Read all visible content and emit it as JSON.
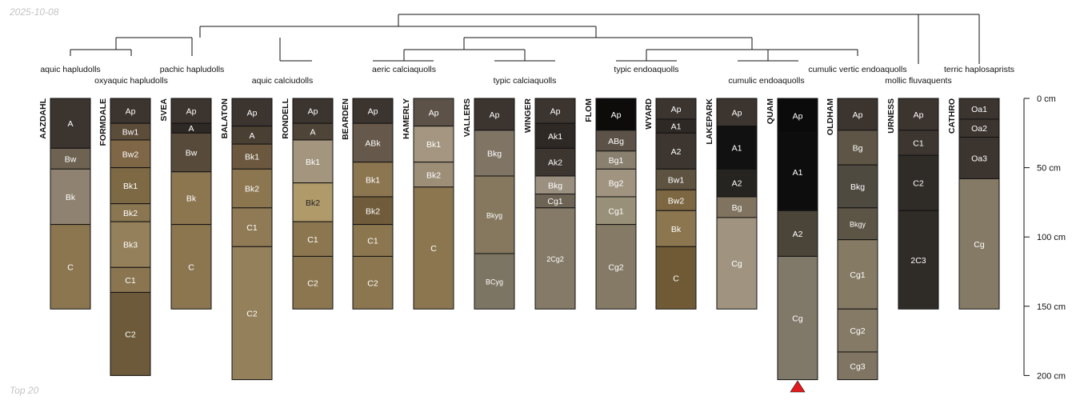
{
  "date": "2025-10-08",
  "footer": "Top 20",
  "depth_axis": {
    "labels": [
      "0 cm",
      "50 cm",
      "100 cm",
      "150 cm",
      "200 cm"
    ]
  },
  "taxa": [
    "aquic hapludolls",
    "oxyaquic hapludolls",
    "pachic hapludolls",
    "aquic calciudolls",
    "aeric calciaquolls",
    "typic calciaquolls",
    "typic endoaquolls",
    "cumulic endoaquolls",
    "cumulic vertic endoaquolls",
    "mollic fluvaquents",
    "terric haplosaprists"
  ],
  "marker": {
    "profile": "QUAM",
    "color": "#e31a1c"
  },
  "profiles": [
    {
      "name": "AAZDAHL",
      "horizons": [
        {
          "name": "A",
          "top": 0,
          "bottom": 36,
          "color": "#3b342f",
          "text": "#ffffff"
        },
        {
          "name": "Bw",
          "top": 36,
          "bottom": 51,
          "color": "#6e6352",
          "text": "#ffffff"
        },
        {
          "name": "Bk",
          "top": 51,
          "bottom": 91,
          "color": "#8f8270",
          "text": "#ffffff"
        },
        {
          "name": "C",
          "top": 91,
          "bottom": 152,
          "color": "#8c7650",
          "text": "#ffffff"
        }
      ]
    },
    {
      "name": "FORMDALE",
      "horizons": [
        {
          "name": "Ap",
          "top": 0,
          "bottom": 18,
          "color": "#3b342f",
          "text": "#ffffff"
        },
        {
          "name": "Bw1",
          "top": 18,
          "bottom": 30,
          "color": "#5c4c3a",
          "text": "#ffffff"
        },
        {
          "name": "Bw2",
          "top": 30,
          "bottom": 50,
          "color": "#7e6646",
          "text": "#ffffff"
        },
        {
          "name": "Bk1",
          "top": 50,
          "bottom": 76,
          "color": "#7d6a44",
          "text": "#ffffff"
        },
        {
          "name": "Bk2",
          "top": 76,
          "bottom": 89,
          "color": "#8a7650",
          "text": "#ffffff"
        },
        {
          "name": "Bk3",
          "top": 89,
          "bottom": 122,
          "color": "#94805a",
          "text": "#ffffff"
        },
        {
          "name": "C1",
          "top": 122,
          "bottom": 140,
          "color": "#8a7550",
          "text": "#ffffff"
        },
        {
          "name": "C2",
          "top": 140,
          "bottom": 200,
          "color": "#6d5a3a",
          "text": "#ffffff"
        }
      ]
    },
    {
      "name": "SVEA",
      "horizons": [
        {
          "name": "Ap",
          "top": 0,
          "bottom": 18,
          "color": "#3b342f",
          "text": "#ffffff"
        },
        {
          "name": "A",
          "top": 18,
          "bottom": 25,
          "color": "#2f2925",
          "text": "#ffffff"
        },
        {
          "name": "Bw",
          "top": 25,
          "bottom": 53,
          "color": "#574a3a",
          "text": "#ffffff"
        },
        {
          "name": "Bk",
          "top": 53,
          "bottom": 91,
          "color": "#8c7650",
          "text": "#ffffff"
        },
        {
          "name": "C",
          "top": 91,
          "bottom": 152,
          "color": "#8c7650",
          "text": "#ffffff"
        }
      ]
    },
    {
      "name": "BALATON",
      "horizons": [
        {
          "name": "Ap",
          "top": 0,
          "bottom": 20,
          "color": "#3b342f",
          "text": "#ffffff"
        },
        {
          "name": "A",
          "top": 20,
          "bottom": 33,
          "color": "#4a3f33",
          "text": "#ffffff"
        },
        {
          "name": "Bk1",
          "top": 33,
          "bottom": 51,
          "color": "#6b583e",
          "text": "#ffffff"
        },
        {
          "name": "Bk2",
          "top": 51,
          "bottom": 79,
          "color": "#8c7650",
          "text": "#ffffff"
        },
        {
          "name": "C1",
          "top": 79,
          "bottom": 107,
          "color": "#8f7a55",
          "text": "#ffffff"
        },
        {
          "name": "C2",
          "top": 107,
          "bottom": 203,
          "color": "#94805a",
          "text": "#ffffff"
        }
      ]
    },
    {
      "name": "RONDELL",
      "horizons": [
        {
          "name": "Ap",
          "top": 0,
          "bottom": 18,
          "color": "#3b342f",
          "text": "#ffffff"
        },
        {
          "name": "A",
          "top": 18,
          "bottom": 30,
          "color": "#4f4438",
          "text": "#ffffff"
        },
        {
          "name": "Bk1",
          "top": 30,
          "bottom": 61,
          "color": "#a3957e",
          "text": "#ffffff"
        },
        {
          "name": "Bk2",
          "top": 61,
          "bottom": 89,
          "color": "#b09a6a",
          "text": "#222222"
        },
        {
          "name": "C1",
          "top": 89,
          "bottom": 114,
          "color": "#8c7650",
          "text": "#ffffff"
        },
        {
          "name": "C2",
          "top": 114,
          "bottom": 152,
          "color": "#8c7650",
          "text": "#ffffff"
        }
      ]
    },
    {
      "name": "BEARDEN",
      "horizons": [
        {
          "name": "Ap",
          "top": 0,
          "bottom": 18,
          "color": "#3b342f",
          "text": "#ffffff"
        },
        {
          "name": "ABk",
          "top": 18,
          "bottom": 46,
          "color": "#66594b",
          "text": "#ffffff"
        },
        {
          "name": "Bk1",
          "top": 46,
          "bottom": 71,
          "color": "#8c7650",
          "text": "#ffffff"
        },
        {
          "name": "Bk2",
          "top": 71,
          "bottom": 91,
          "color": "#705c3a",
          "text": "#ffffff"
        },
        {
          "name": "C1",
          "top": 91,
          "bottom": 114,
          "color": "#8c7650",
          "text": "#ffffff"
        },
        {
          "name": "C2",
          "top": 114,
          "bottom": 152,
          "color": "#8c7650",
          "text": "#ffffff"
        }
      ]
    },
    {
      "name": "HAMERLY",
      "horizons": [
        {
          "name": "Ap",
          "top": 0,
          "bottom": 20,
          "color": "#5c5248",
          "text": "#ffffff"
        },
        {
          "name": "Bk1",
          "top": 20,
          "bottom": 46,
          "color": "#a49680",
          "text": "#ffffff"
        },
        {
          "name": "Bk2",
          "top": 46,
          "bottom": 64,
          "color": "#9d8e78",
          "text": "#ffffff"
        },
        {
          "name": "C",
          "top": 64,
          "bottom": 152,
          "color": "#8c7650",
          "text": "#ffffff"
        }
      ]
    },
    {
      "name": "VALLERS",
      "horizons": [
        {
          "name": "Ap",
          "top": 0,
          "bottom": 23,
          "color": "#3b342f",
          "text": "#ffffff"
        },
        {
          "name": "Bkg",
          "top": 23,
          "bottom": 56,
          "color": "#807565",
          "text": "#ffffff"
        },
        {
          "name": "Bkyg",
          "top": 56,
          "bottom": 112,
          "color": "#85785e",
          "text": "#ffffff"
        },
        {
          "name": "BCyg",
          "top": 112,
          "bottom": 152,
          "color": "#7d7563",
          "text": "#ffffff"
        }
      ]
    },
    {
      "name": "WINGER",
      "horizons": [
        {
          "name": "Ap",
          "top": 0,
          "bottom": 18,
          "color": "#3b342f",
          "text": "#ffffff"
        },
        {
          "name": "Ak1",
          "top": 18,
          "bottom": 36,
          "color": "#2f2925",
          "text": "#ffffff"
        },
        {
          "name": "Ak2",
          "top": 36,
          "bottom": 56,
          "color": "#3d3630",
          "text": "#ffffff"
        },
        {
          "name": "Bkg",
          "top": 56,
          "bottom": 69,
          "color": "#9b9080",
          "text": "#ffffff"
        },
        {
          "name": "Cg1",
          "top": 69,
          "bottom": 79,
          "color": "#6e6455",
          "text": "#ffffff"
        },
        {
          "name": "2Cg2",
          "top": 79,
          "bottom": 152,
          "color": "#857a68",
          "text": "#ffffff"
        }
      ]
    },
    {
      "name": "FLOM",
      "horizons": [
        {
          "name": "Ap",
          "top": 0,
          "bottom": 23,
          "color": "#0d0c0b",
          "text": "#ffffff"
        },
        {
          "name": "ABg",
          "top": 23,
          "bottom": 38,
          "color": "#5c5247",
          "text": "#ffffff"
        },
        {
          "name": "Bg1",
          "top": 38,
          "bottom": 51,
          "color": "#8a806f",
          "text": "#ffffff"
        },
        {
          "name": "Bg2",
          "top": 51,
          "bottom": 71,
          "color": "#a09480",
          "text": "#ffffff"
        },
        {
          "name": "Cg1",
          "top": 71,
          "bottom": 91,
          "color": "#989078",
          "text": "#ffffff"
        },
        {
          "name": "Cg2",
          "top": 91,
          "bottom": 152,
          "color": "#857a66",
          "text": "#ffffff"
        }
      ]
    },
    {
      "name": "WYARD",
      "horizons": [
        {
          "name": "Ap",
          "top": 0,
          "bottom": 15,
          "color": "#3b342f",
          "text": "#ffffff"
        },
        {
          "name": "A1",
          "top": 15,
          "bottom": 25,
          "color": "#2f2925",
          "text": "#ffffff"
        },
        {
          "name": "A2",
          "top": 25,
          "bottom": 51,
          "color": "#3d3630",
          "text": "#ffffff"
        },
        {
          "name": "Bw1",
          "top": 51,
          "bottom": 66,
          "color": "#5e5240",
          "text": "#ffffff"
        },
        {
          "name": "Bw2",
          "top": 66,
          "bottom": 81,
          "color": "#7d6743",
          "text": "#ffffff"
        },
        {
          "name": "Bk",
          "top": 81,
          "bottom": 107,
          "color": "#8c7650",
          "text": "#ffffff"
        },
        {
          "name": "C",
          "top": 107,
          "bottom": 152,
          "color": "#705a35",
          "text": "#ffffff"
        }
      ]
    },
    {
      "name": "LAKEPARK",
      "horizons": [
        {
          "name": "Ap",
          "top": 0,
          "bottom": 20,
          "color": "#3b342f",
          "text": "#ffffff"
        },
        {
          "name": "A1",
          "top": 20,
          "bottom": 51,
          "color": "#111111",
          "text": "#ffffff"
        },
        {
          "name": "A2",
          "top": 51,
          "bottom": 71,
          "color": "#262420",
          "text": "#ffffff"
        },
        {
          "name": "Bg",
          "top": 71,
          "bottom": 86,
          "color": "#807360",
          "text": "#ffffff"
        },
        {
          "name": "Cg",
          "top": 86,
          "bottom": 152,
          "color": "#a09480",
          "text": "#ffffff"
        }
      ]
    },
    {
      "name": "QUAM",
      "horizons": [
        {
          "name": "Ap",
          "top": 0,
          "bottom": 25,
          "color": "#0b0b0b",
          "text": "#ffffff"
        },
        {
          "name": "A1",
          "top": 25,
          "bottom": 81,
          "color": "#0d0d0d",
          "text": "#ffffff"
        },
        {
          "name": "A2",
          "top": 81,
          "bottom": 114,
          "color": "#4a4538",
          "text": "#ffffff"
        },
        {
          "name": "Cg",
          "top": 114,
          "bottom": 203,
          "color": "#807868",
          "text": "#ffffff"
        }
      ]
    },
    {
      "name": "OLDHAM",
      "horizons": [
        {
          "name": "Ap",
          "top": 0,
          "bottom": 23,
          "color": "#3b342f",
          "text": "#ffffff"
        },
        {
          "name": "Bg",
          "top": 23,
          "bottom": 48,
          "color": "#5e5546",
          "text": "#ffffff"
        },
        {
          "name": "Bkg",
          "top": 48,
          "bottom": 79,
          "color": "#4f4a40",
          "text": "#ffffff"
        },
        {
          "name": "Bkgy",
          "top": 79,
          "bottom": 102,
          "color": "#5c5445",
          "text": "#ffffff"
        },
        {
          "name": "Cg1",
          "top": 102,
          "bottom": 152,
          "color": "#857a64",
          "text": "#ffffff"
        },
        {
          "name": "Cg2",
          "top": 152,
          "bottom": 183,
          "color": "#857a66",
          "text": "#ffffff"
        },
        {
          "name": "Cg3",
          "top": 183,
          "bottom": 203,
          "color": "#807562",
          "text": "#ffffff"
        }
      ]
    },
    {
      "name": "URNESS",
      "horizons": [
        {
          "name": "Ap",
          "top": 0,
          "bottom": 23,
          "color": "#3b342f",
          "text": "#ffffff"
        },
        {
          "name": "C1",
          "top": 23,
          "bottom": 41,
          "color": "#3d3630",
          "text": "#ffffff"
        },
        {
          "name": "C2",
          "top": 41,
          "bottom": 81,
          "color": "#2f2c28",
          "text": "#ffffff"
        },
        {
          "name": "2C3",
          "top": 81,
          "bottom": 152,
          "color": "#2f2c27",
          "text": "#ffffff"
        }
      ]
    },
    {
      "name": "CATHRO",
      "horizons": [
        {
          "name": "Oa1",
          "top": 0,
          "bottom": 15,
          "color": "#3b342f",
          "text": "#ffffff"
        },
        {
          "name": "Oa2",
          "top": 15,
          "bottom": 28,
          "color": "#3b342f",
          "text": "#ffffff"
        },
        {
          "name": "Oa3",
          "top": 28,
          "bottom": 58,
          "color": "#3b342f",
          "text": "#ffffff"
        },
        {
          "name": "Cg",
          "top": 58,
          "bottom": 152,
          "color": "#857a66",
          "text": "#ffffff"
        }
      ]
    }
  ]
}
